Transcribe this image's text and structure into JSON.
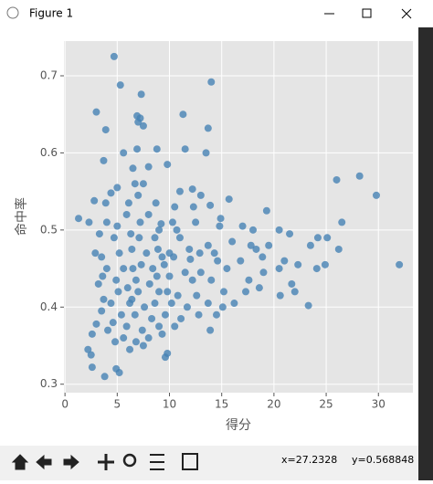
{
  "window": {
    "title": "Figure 1",
    "status_x": "x=27.2328",
    "status_y": "y=0.568848"
  },
  "chart_data": {
    "type": "scatter",
    "xlabel": "得分",
    "ylabel": "命中率",
    "color": "#4682b4",
    "grid": true,
    "xlim": [
      -0.1,
      33.3
    ],
    "ylim": [
      0.289,
      0.745
    ],
    "xticks": [
      0,
      5,
      10,
      15,
      20,
      25,
      30
    ],
    "yticks": [
      0.3,
      0.4,
      0.5,
      0.6,
      0.7
    ],
    "x": [
      4.7,
      5.3,
      3,
      7.3,
      14,
      6.9,
      7,
      7.2,
      11.3,
      7.5,
      3.9,
      13.7,
      5.6,
      6.9,
      8.8,
      11.5,
      13.5,
      3.7,
      6.5,
      8,
      9.8,
      6.7,
      5,
      7.5,
      11,
      12.2,
      4.4,
      7,
      13,
      15.7,
      2.8,
      3.9,
      6.1,
      8.7,
      10.5,
      13.9,
      19.3,
      26,
      28.2,
      29.8,
      26.5,
      1.3,
      2.3,
      4,
      5,
      7.2,
      9.2,
      10.3,
      12.5,
      14.8,
      17,
      18,
      20.5,
      21.5,
      24.2,
      25.1,
      3.3,
      4.7,
      6.3,
      8.6,
      11,
      13.7,
      16,
      18.3,
      19.5,
      23.5,
      26.2,
      32,
      2.9,
      3.5,
      5.2,
      7.8,
      9.3,
      10.4,
      12,
      14.6,
      16.8,
      18.9,
      21,
      22.3,
      4,
      5.6,
      6.5,
      8.4,
      9.5,
      11.5,
      13,
      15.5,
      19,
      20.5,
      24.1,
      24.9,
      3.6,
      4.9,
      6.8,
      8.1,
      10,
      12.2,
      14,
      17.6,
      18.6,
      21.7,
      3.2,
      5.1,
      6,
      7,
      9,
      10.8,
      12.6,
      15.2,
      17.3,
      20.6,
      22,
      3.7,
      4.4,
      6.2,
      7.6,
      8.6,
      10.2,
      11.7,
      13.7,
      15.1,
      23.3,
      3.5,
      5.4,
      6.7,
      8.3,
      9.6,
      11.1,
      12.8,
      14.5,
      16.2,
      4.6,
      5.9,
      7.4,
      9,
      10.5,
      13.9,
      3,
      4.1,
      2.6,
      5.6,
      6.8,
      8,
      9.3,
      4.8,
      7.5,
      6.2,
      2.2,
      2.5,
      9.8,
      9.6,
      2.6,
      5.2,
      3.8,
      4.9,
      8,
      9,
      5.9,
      6.4,
      7.1,
      8.9,
      10.7,
      12.9,
      14.3,
      17.8,
      11.9,
      7.3,
      10,
      6.4,
      8.8,
      9.8,
      12.3,
      14.9
    ],
    "values": [
      0.725,
      0.688,
      0.653,
      0.676,
      0.692,
      0.648,
      0.64,
      0.645,
      0.65,
      0.635,
      0.63,
      0.632,
      0.6,
      0.605,
      0.605,
      0.605,
      0.6,
      0.59,
      0.58,
      0.582,
      0.585,
      0.56,
      0.555,
      0.56,
      0.55,
      0.553,
      0.548,
      0.545,
      0.545,
      0.54,
      0.538,
      0.535,
      0.535,
      0.535,
      0.53,
      0.532,
      0.525,
      0.565,
      0.57,
      0.545,
      0.51,
      0.515,
      0.51,
      0.51,
      0.505,
      0.51,
      0.508,
      0.51,
      0.51,
      0.505,
      0.505,
      0.5,
      0.5,
      0.495,
      0.49,
      0.49,
      0.495,
      0.49,
      0.495,
      0.49,
      0.49,
      0.48,
      0.485,
      0.475,
      0.48,
      0.48,
      0.475,
      0.455,
      0.47,
      0.465,
      0.47,
      0.47,
      0.465,
      0.465,
      0.462,
      0.46,
      0.46,
      0.465,
      0.46,
      0.455,
      0.45,
      0.45,
      0.45,
      0.45,
      0.455,
      0.445,
      0.445,
      0.45,
      0.445,
      0.45,
      0.45,
      0.455,
      0.44,
      0.435,
      0.435,
      0.43,
      0.44,
      0.435,
      0.435,
      0.435,
      0.425,
      0.43,
      0.43,
      0.42,
      0.425,
      0.42,
      0.42,
      0.415,
      0.415,
      0.42,
      0.42,
      0.415,
      0.42,
      0.41,
      0.405,
      0.405,
      0.4,
      0.405,
      0.405,
      0.4,
      0.405,
      0.4,
      0.402,
      0.395,
      0.39,
      0.39,
      0.385,
      0.39,
      0.385,
      0.39,
      0.39,
      0.405,
      0.38,
      0.375,
      0.37,
      0.375,
      0.375,
      0.37,
      0.378,
      0.37,
      0.365,
      0.36,
      0.355,
      0.36,
      0.365,
      0.355,
      0.35,
      0.345,
      0.345,
      0.338,
      0.34,
      0.335,
      0.322,
      0.315,
      0.31,
      0.32,
      0.52,
      0.5,
      0.52,
      0.475,
      0.49,
      0.475,
      0.5,
      0.47,
      0.47,
      0.48,
      0.475,
      0.455,
      0.47,
      0.41,
      0.44,
      0.42,
      0.53,
      0.515
    ]
  }
}
